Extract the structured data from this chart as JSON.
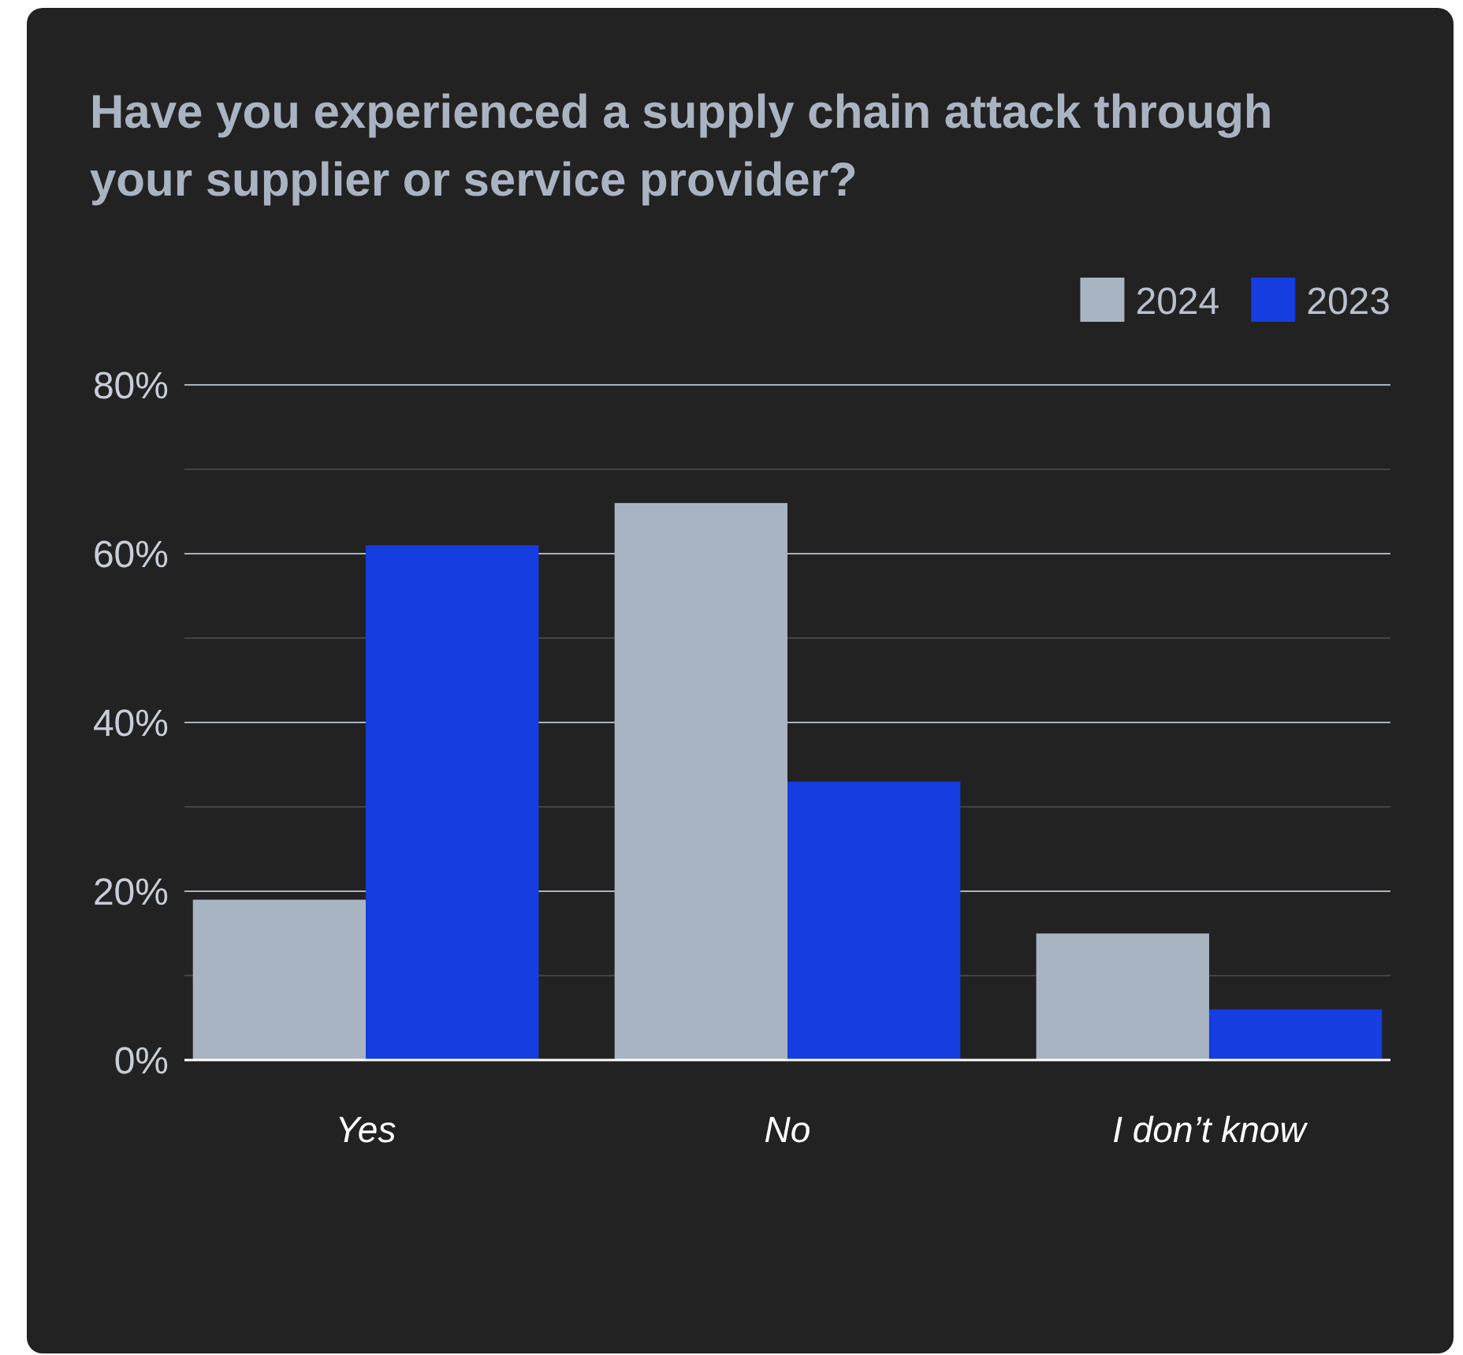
{
  "chart_data": {
    "type": "bar",
    "title": "Have you experienced a supply chain attack through your supplier or service provider?",
    "categories": [
      "Yes",
      "No",
      "I don’t know"
    ],
    "series": [
      {
        "name": "2024",
        "color": "#a9b4c2",
        "values": [
          19,
          66,
          15
        ]
      },
      {
        "name": "2023",
        "color": "#163de0",
        "values": [
          61,
          33,
          6
        ]
      }
    ],
    "ylim": [
      0,
      80
    ],
    "yticks": [
      {
        "value": 0,
        "label": "0%"
      },
      {
        "value": 10,
        "label": null
      },
      {
        "value": 20,
        "label": "20%"
      },
      {
        "value": 30,
        "label": null
      },
      {
        "value": 40,
        "label": "40%"
      },
      {
        "value": 50,
        "label": null
      },
      {
        "value": 60,
        "label": "60%"
      },
      {
        "value": 70,
        "label": null
      },
      {
        "value": 80,
        "label": "80%"
      }
    ],
    "grid": true,
    "legend": "top right"
  }
}
